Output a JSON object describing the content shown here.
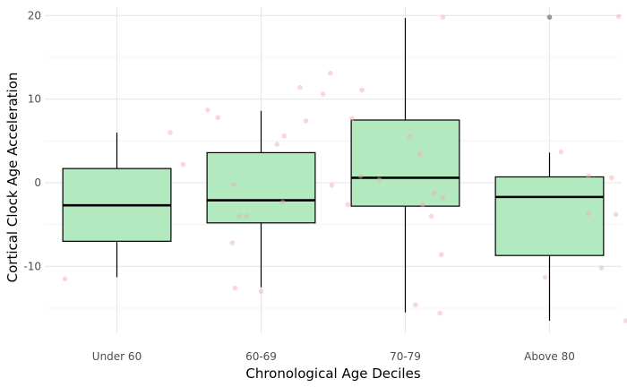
{
  "chart_data": {
    "type": "box",
    "xlabel": "Chronological Age Deciles",
    "ylabel": "Cortical Clock Age Acceleration",
    "ylim": [
      -18,
      21
    ],
    "yticks": [
      -10,
      0,
      10,
      20
    ],
    "grid": true,
    "box_fill": "#b3e9bf",
    "point_color": "#f4a9a8",
    "outlier_color": "#808080",
    "categories": [
      "Under 60",
      "60-69",
      "70-79",
      "Above 80"
    ],
    "boxes": [
      {
        "category": "Under 60",
        "whisker_low": -11.3,
        "q1": -7.0,
        "median": -2.7,
        "q3": 1.7,
        "whisker_high": 6.0,
        "outliers": []
      },
      {
        "category": "60-69",
        "whisker_low": -12.5,
        "q1": -4.8,
        "median": -2.1,
        "q3": 3.6,
        "whisker_high": 8.6,
        "outliers": []
      },
      {
        "category": "70-79",
        "whisker_low": -15.5,
        "q1": -2.8,
        "median": 0.6,
        "q3": 7.5,
        "whisker_high": 19.7,
        "outliers": []
      },
      {
        "category": "Above 80",
        "whisker_low": -16.5,
        "q1": -8.7,
        "median": -1.7,
        "q3": 0.7,
        "whisker_high": 3.6,
        "outliers": [
          19.8
        ]
      }
    ],
    "points": [
      {
        "x": 0.64,
        "y": -11.5
      },
      {
        "x": 1.37,
        "y": 6.0
      },
      {
        "x": 1.63,
        "y": 8.7
      },
      {
        "x": 1.7,
        "y": 7.8
      },
      {
        "x": 1.46,
        "y": 2.2
      },
      {
        "x": 1.81,
        "y": -0.2
      },
      {
        "x": 1.85,
        "y": -4.0
      },
      {
        "x": 1.9,
        "y": -4.0
      },
      {
        "x": 1.8,
        "y": -7.2
      },
      {
        "x": 1.82,
        "y": -12.6
      },
      {
        "x": 3.26,
        "y": 19.8
      },
      {
        "x": 2.48,
        "y": 13.1
      },
      {
        "x": 2.27,
        "y": 11.4
      },
      {
        "x": 2.43,
        "y": 10.6
      },
      {
        "x": 2.7,
        "y": 11.1
      },
      {
        "x": 2.31,
        "y": 7.4
      },
      {
        "x": 2.63,
        "y": 7.7
      },
      {
        "x": 2.16,
        "y": 5.6
      },
      {
        "x": 2.11,
        "y": 4.6
      },
      {
        "x": 3.03,
        "y": 5.5
      },
      {
        "x": 3.1,
        "y": 3.4
      },
      {
        "x": 2.69,
        "y": 0.8
      },
      {
        "x": 2.82,
        "y": 0.4
      },
      {
        "x": 2.49,
        "y": -0.3
      },
      {
        "x": 3.2,
        "y": -1.2
      },
      {
        "x": 3.26,
        "y": -1.8
      },
      {
        "x": 2.15,
        "y": -2.3
      },
      {
        "x": 2.6,
        "y": -2.6
      },
      {
        "x": 3.12,
        "y": -2.6
      },
      {
        "x": 3.18,
        "y": -4.0
      },
      {
        "x": 3.25,
        "y": -8.6
      },
      {
        "x": 2.0,
        "y": -13.0
      },
      {
        "x": 3.07,
        "y": -14.6
      },
      {
        "x": 3.24,
        "y": -15.6
      },
      {
        "x": 4.48,
        "y": 19.9
      },
      {
        "x": 4.08,
        "y": 3.7
      },
      {
        "x": 4.27,
        "y": 0.8
      },
      {
        "x": 4.43,
        "y": 0.6
      },
      {
        "x": 4.67,
        "y": 0.5
      },
      {
        "x": 4.27,
        "y": -3.7
      },
      {
        "x": 4.46,
        "y": -3.8
      },
      {
        "x": 4.36,
        "y": -10.2
      },
      {
        "x": 3.97,
        "y": -11.3
      },
      {
        "x": 4.53,
        "y": -16.5
      }
    ]
  }
}
